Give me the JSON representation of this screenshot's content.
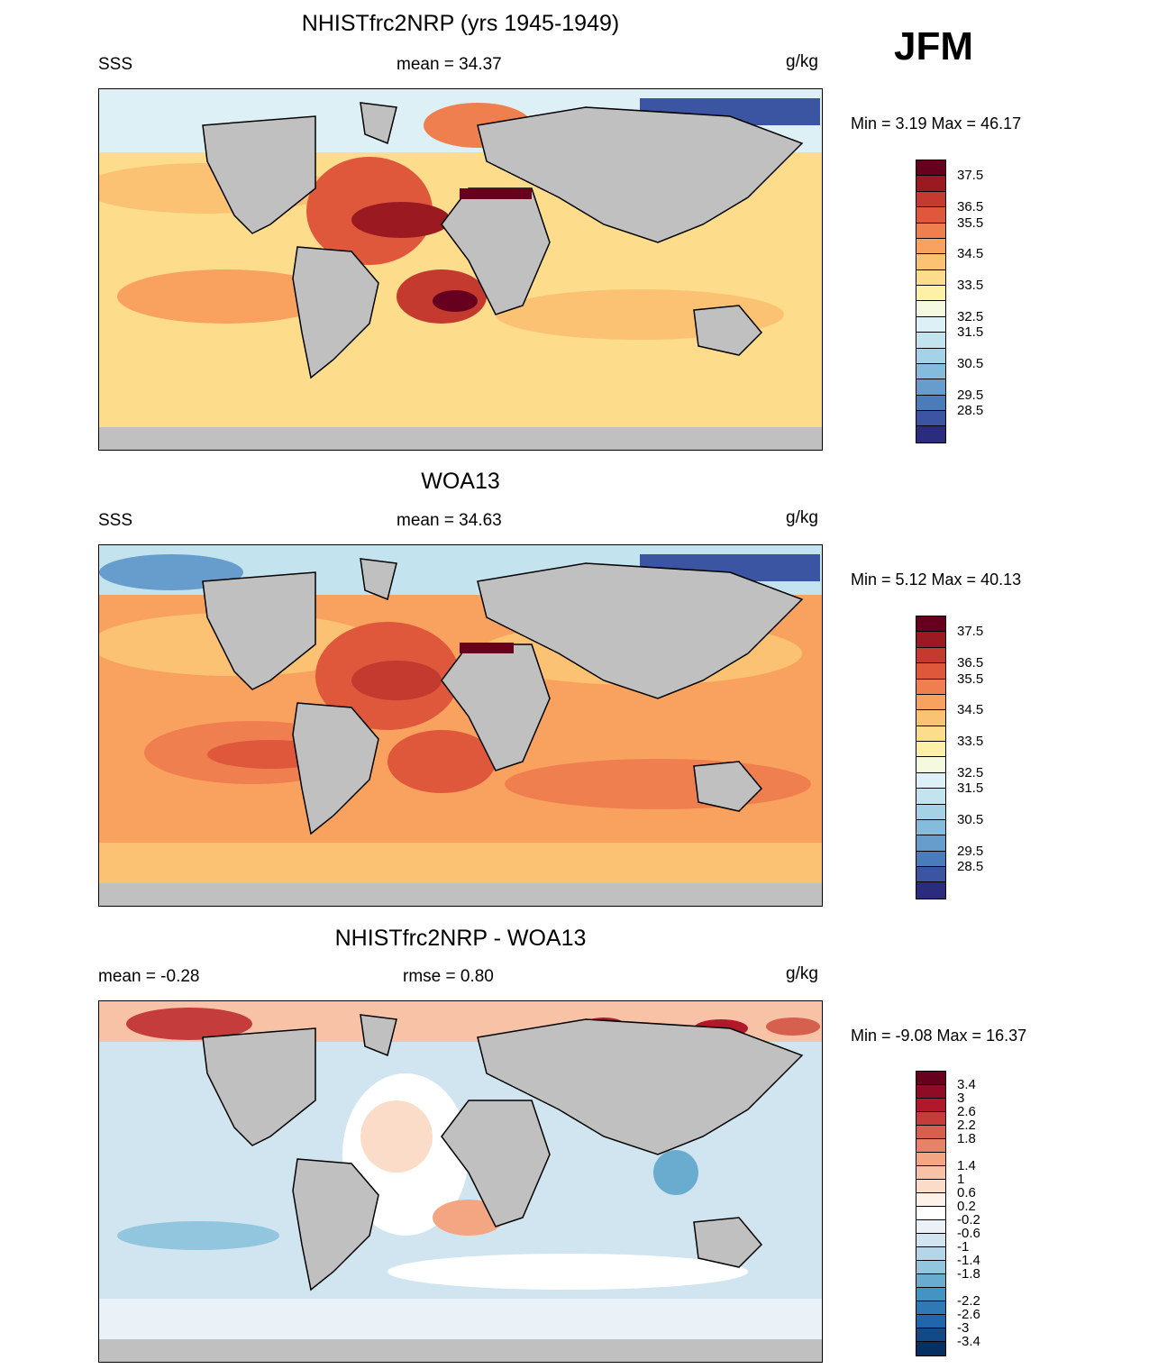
{
  "season": "JFM",
  "units": "g/kg",
  "panels": [
    {
      "title": "NHISTfrc2NRP (yrs 1945-1949)",
      "left_label": "SSS",
      "center_label": "mean =  34.37",
      "minmax": "Min =   3.19 Max =  46.17",
      "colorbar_labels": [
        "37.5",
        "36.5",
        "35.5",
        "34.5",
        "33.5",
        "32.5",
        "31.5",
        "30.5",
        "29.5",
        "28.5"
      ],
      "colors": [
        "#67001f",
        "#9b1a22",
        "#c43a2f",
        "#e0583c",
        "#f07f4f",
        "#f9a25f",
        "#fcc273",
        "#fddc8c",
        "#fff0a8",
        "#f4f9e0",
        "#ddf0f5",
        "#c3e3ef",
        "#a5d2e7",
        "#85bbdc",
        "#669dcc",
        "#4a7bbb",
        "#3b55a2",
        "#2c2c7e"
      ]
    },
    {
      "title": "WOA13",
      "left_label": "SSS",
      "center_label": "mean =  34.63",
      "minmax": "Min =   5.12 Max =  40.13",
      "colorbar_labels": [
        "37.5",
        "36.5",
        "35.5",
        "34.5",
        "33.5",
        "32.5",
        "31.5",
        "30.5",
        "29.5",
        "28.5"
      ],
      "colors": [
        "#67001f",
        "#9b1a22",
        "#c43a2f",
        "#e0583c",
        "#f07f4f",
        "#f9a25f",
        "#fcc273",
        "#fddc8c",
        "#fff0a8",
        "#f4f9e0",
        "#ddf0f5",
        "#c3e3ef",
        "#a5d2e7",
        "#85bbdc",
        "#669dcc",
        "#4a7bbb",
        "#3b55a2",
        "#2c2c7e"
      ]
    },
    {
      "title": "NHISTfrc2NRP - WOA13",
      "left_label": "mean =  -0.28",
      "center_label": "rmse =   0.80",
      "minmax": "Min =  -9.08 Max =  16.37",
      "colorbar_labels": [
        "3.4",
        "3",
        "2.6",
        "2.2",
        "1.8",
        "1.4",
        "1",
        "0.6",
        "0.2",
        "-0.2",
        "-0.6",
        "-1",
        "-1.4",
        "-1.8",
        "-2.2",
        "-2.6",
        "-3",
        "-3.4"
      ],
      "colors": [
        "#67001f",
        "#8e0c25",
        "#b2182b",
        "#c43c3c",
        "#d6604d",
        "#e58368",
        "#f4a582",
        "#f8c2a6",
        "#fbdcc9",
        "#fdf2ea",
        "#ffffff",
        "#eaf2f7",
        "#d1e5f0",
        "#b4d6e8",
        "#92c5de",
        "#6aacd0",
        "#4393c3",
        "#3079b5",
        "#2166ac",
        "#124a87",
        "#053061"
      ]
    }
  ]
}
